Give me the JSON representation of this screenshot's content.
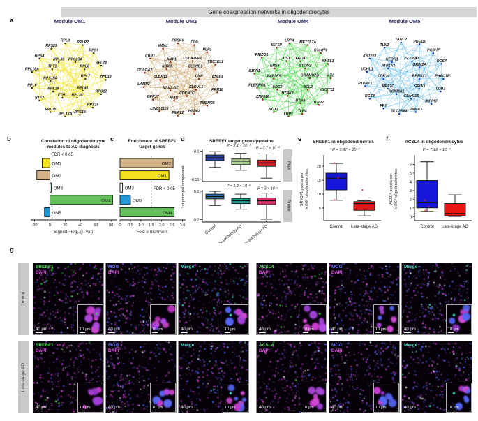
{
  "figure_title": "Gene coexpression networks in oligodendrocytes",
  "panel_labels": {
    "a": "a",
    "b": "b",
    "c": "c",
    "d": "d",
    "e": "e",
    "f": "f",
    "g": "g"
  },
  "panel_a": {
    "modules": [
      {
        "title": "Module OM1",
        "edge_color": "#efdf05",
        "node_color": "#2a2a2a",
        "genes": [
          [
            "RPL3",
            0.45,
            0.09
          ],
          [
            "RPLP2",
            0.64,
            0.11
          ],
          [
            "RPS25",
            0.3,
            0.15
          ],
          [
            "RPS9",
            0.76,
            0.2
          ],
          [
            "RPS8",
            0.17,
            0.26
          ],
          [
            "RPL30",
            0.38,
            0.3
          ],
          [
            "RPL23A",
            0.56,
            0.3
          ],
          [
            "RPL24",
            0.84,
            0.34
          ],
          [
            "RPL18A",
            0.09,
            0.41
          ],
          [
            "TPT1",
            0.31,
            0.38
          ],
          [
            "RPL8",
            0.66,
            0.38
          ],
          [
            "RPS15A",
            0.29,
            0.51
          ],
          [
            "RPL7",
            0.67,
            0.49
          ],
          [
            "RPL18",
            0.89,
            0.5
          ],
          [
            "RPL6",
            0.09,
            0.59
          ],
          [
            "RPL29",
            0.32,
            0.63
          ],
          [
            "RPL41",
            0.64,
            0.62
          ],
          [
            "RPS12",
            0.84,
            0.66
          ],
          [
            "BTF3",
            0.17,
            0.73
          ],
          [
            "FTH1",
            0.42,
            0.7
          ],
          [
            "RPL38",
            0.58,
            0.7
          ],
          [
            "RPS19",
            0.75,
            0.81
          ],
          [
            "RPL35",
            0.29,
            0.86
          ],
          [
            "RPL13A",
            0.45,
            0.91
          ],
          [
            "RPS18",
            0.61,
            0.89
          ]
        ]
      },
      {
        "title": "Module OM2",
        "edge_color": "#c7a265",
        "node_color": "#8c1f1f",
        "genes": [
          [
            "PCSK6",
            0.46,
            0.09
          ],
          [
            "CD9",
            0.64,
            0.11
          ],
          [
            "VWA1",
            0.3,
            0.15
          ],
          [
            "PLP1",
            0.78,
            0.19
          ],
          [
            "CBR1",
            0.16,
            0.26
          ],
          [
            "LAMP1",
            0.38,
            0.3
          ],
          [
            "CDC42EP1",
            0.62,
            0.29
          ],
          [
            "TBC1D12",
            0.87,
            0.33
          ],
          [
            "GOLGA7",
            0.1,
            0.42
          ],
          [
            "SOX8",
            0.34,
            0.38
          ],
          [
            "CLDND1",
            0.65,
            0.38
          ],
          [
            "CLDN11",
            0.27,
            0.5
          ],
          [
            "CNP",
            0.69,
            0.49
          ],
          [
            "ERMN",
            0.89,
            0.5
          ],
          [
            "LAMP2",
            0.09,
            0.58
          ],
          [
            "SOX2-OT",
            0.38,
            0.62
          ],
          [
            "ELOVL1",
            0.66,
            0.61
          ],
          [
            "PRR18",
            0.89,
            0.64
          ],
          [
            "GPR37",
            0.19,
            0.72
          ],
          [
            "MAG",
            0.42,
            0.73
          ],
          [
            "CDKN1C",
            0.56,
            0.68
          ],
          [
            "TMEM98",
            0.78,
            0.79
          ],
          [
            "LINC01105",
            0.26,
            0.85
          ],
          [
            "PMP22",
            0.46,
            0.9
          ],
          [
            "HSPA2",
            0.64,
            0.88
          ]
        ]
      },
      {
        "title": "Module OM4",
        "edge_color": "#2fd42f",
        "node_color": "#8c1f1f",
        "genes": [
          [
            "LRP4",
            0.46,
            0.09
          ],
          [
            "METTL7A",
            0.66,
            0.11
          ],
          [
            "IGF1R",
            0.32,
            0.14
          ],
          [
            "C3orf70",
            0.8,
            0.2
          ],
          [
            "PIEZO1",
            0.16,
            0.25
          ],
          [
            "UST",
            0.43,
            0.29
          ],
          [
            "FGD4",
            0.58,
            0.29
          ],
          [
            "NHSL1",
            0.88,
            0.32
          ],
          [
            "EPS8",
            0.3,
            0.37
          ],
          [
            "STON2",
            0.63,
            0.37
          ],
          [
            "S1PR1",
            0.08,
            0.43
          ],
          [
            "MAP3K5",
            0.29,
            0.49
          ],
          [
            "GRAMD2B",
            0.68,
            0.48
          ],
          [
            "AXL",
            0.91,
            0.48
          ],
          [
            "PLEKHG1",
            0.11,
            0.59
          ],
          [
            "SDC2",
            0.33,
            0.61
          ],
          [
            "BCL2",
            0.66,
            0.61
          ],
          [
            "CHST11",
            0.87,
            0.64
          ],
          [
            "ZNF516",
            0.17,
            0.72
          ],
          [
            "NTRK2",
            0.44,
            0.68
          ],
          [
            "DTNA",
            0.58,
            0.76
          ],
          [
            "ITPR2",
            0.78,
            0.78
          ],
          [
            "SOX2",
            0.29,
            0.86
          ],
          [
            "LRP1",
            0.45,
            0.91
          ],
          [
            "TLR4",
            0.6,
            0.88
          ]
        ]
      },
      {
        "title": "Module OM5",
        "edge_color": "#62bbe8",
        "node_color": "#1930b0",
        "genes": [
          [
            "TANC2",
            0.46,
            0.08
          ],
          [
            "PDE1B",
            0.66,
            0.1
          ],
          [
            "TLN2",
            0.28,
            0.14
          ],
          [
            "PCDH7",
            0.81,
            0.2
          ],
          [
            "KRT222",
            0.12,
            0.26
          ],
          [
            "NEGR1",
            0.36,
            0.3
          ],
          [
            "SLC8A1",
            0.58,
            0.29
          ],
          [
            "RGS7",
            0.9,
            0.32
          ],
          [
            "UCHL1",
            0.09,
            0.41
          ],
          [
            "ATP1A3",
            0.32,
            0.37
          ],
          [
            "GRIN2A",
            0.66,
            0.36
          ],
          [
            "CDK14",
            0.27,
            0.49
          ],
          [
            "RBFOX1",
            0.66,
            0.49
          ],
          [
            "PHACTR1",
            0.92,
            0.49
          ],
          [
            "PTPRZ1",
            0.07,
            0.57
          ],
          [
            "MEF2C",
            0.32,
            0.6
          ],
          [
            "GRIA3",
            0.66,
            0.6
          ],
          [
            "LDB2",
            0.89,
            0.63
          ],
          [
            "RGS4",
            0.12,
            0.71
          ],
          [
            "KCNMA1",
            0.41,
            0.66
          ],
          [
            "C1orf115",
            0.57,
            0.71
          ],
          [
            "INPP5F",
            0.79,
            0.77
          ],
          [
            "FRY",
            0.27,
            0.82
          ],
          [
            "SLC25A4",
            0.44,
            0.88
          ],
          [
            "PNMA3",
            0.62,
            0.86
          ]
        ]
      }
    ]
  },
  "chart_data": [
    {
      "id": "b",
      "type": "bar",
      "orientation": "horizontal",
      "title_lines": [
        "Correlation of oligodendrocyte",
        "modules to AD diagnosis"
      ],
      "annotation": "FDR < 0.05",
      "threshold": 3,
      "categories": [
        "OM1",
        "OM2",
        "OM3",
        "OM4",
        "OM5"
      ],
      "values": [
        -10,
        -17,
        2,
        82,
        -7
      ],
      "colors": [
        "#f3e11d",
        "#d3b287",
        "#cde9e5",
        "#63c05a",
        "#1f97d4"
      ],
      "xlabel": "Signed −log₁₀(P val)",
      "xticks": [
        "-20",
        "0",
        "20",
        "40",
        "60",
        "80"
      ],
      "xlim": [
        -25,
        88
      ]
    },
    {
      "id": "c",
      "type": "bar",
      "orientation": "horizontal",
      "title_lines": [
        "Enrichment of SREBF1",
        "target genes"
      ],
      "annotation": "FDR < 0.05",
      "threshold": 1.5,
      "categories": [
        "OM2",
        "OM1",
        "OM3",
        "OM5",
        "OM4"
      ],
      "values": [
        2.55,
        2.35,
        0.12,
        0.5,
        2.6
      ],
      "colors": [
        "#d3b287",
        "#f3e11d",
        "#ffffff",
        "#1f97d4",
        "#63c05a"
      ],
      "xlabel": "Fold enrichment",
      "xticks": [
        "0",
        "0.5",
        "1.0",
        "1.5",
        "2.0",
        "2.5",
        "3.0"
      ],
      "xlim": [
        0,
        3.15
      ]
    },
    {
      "id": "d",
      "type": "box",
      "title": "SREBF1 target genes/proteins",
      "ylabel": "1st principal component",
      "groups": [
        "Control",
        "Early-pathology AD",
        "Late-pathology AD"
      ],
      "subplots": [
        {
          "tab": "RNA",
          "yticks": [
            "0.1",
            "-0.15"
          ],
          "ylim": [
            -0.17,
            0.115
          ],
          "p_values": [
            "P = 2.1 × 10⁻³",
            "P = 3.7 × 10⁻⁸"
          ],
          "boxes": [
            {
              "color": "#2b3f94",
              "lo": -0.045,
              "q1": 0.015,
              "med": 0.04,
              "q3": 0.065,
              "hi": 0.095
            },
            {
              "color": "#a9d18e",
              "lo": -0.07,
              "q1": -0.02,
              "med": 0.01,
              "q3": 0.03,
              "hi": 0.08
            },
            {
              "color": "#d02020",
              "lo": -0.14,
              "q1": -0.035,
              "med": -0.005,
              "q3": 0.02,
              "hi": 0.075
            }
          ]
        },
        {
          "tab": "Protein",
          "yticks": [
            "0.1",
            "-0.2"
          ],
          "ylim": [
            -0.225,
            0.115
          ],
          "p_values": [
            "P = 1.2 × 10⁻⁵",
            "P = 3 × 10⁻⁴"
          ],
          "boxes": [
            {
              "color": "#2e75b6",
              "lo": -0.05,
              "q1": 0.02,
              "med": 0.045,
              "q3": 0.07,
              "hi": 0.1
            },
            {
              "color": "#1f9e89",
              "lo": -0.09,
              "q1": -0.03,
              "med": 0,
              "q3": 0.025,
              "hi": 0.07
            },
            {
              "color": "#d6336c",
              "lo": -0.195,
              "q1": -0.04,
              "med": 0,
              "q3": 0.03,
              "hi": 0.08,
              "outliers": [
                -0.215
              ]
            }
          ]
        }
      ]
    },
    {
      "id": "e",
      "type": "box",
      "title": "SREBF1 in oligodendrocytes",
      "p_value": "P = 9.87 × 10⁻⁷",
      "ylabel_lines": [
        "SREBF1 puncta per",
        "MOG⁺ oligodendrocytes"
      ],
      "yticks": [
        5,
        10,
        15,
        20
      ],
      "ylim": [
        1,
        22.5
      ],
      "groups": [
        "Control",
        "Late-stage AD"
      ],
      "boxes": [
        {
          "color": "#1616d8",
          "lo": 7.8,
          "q1": 11.5,
          "med": 15.7,
          "q3": 17.5,
          "hi": 21,
          "points": [
            7.9,
            15.9,
            21.1
          ]
        },
        {
          "color": "#ea1515",
          "lo": 2.2,
          "q1": 4.2,
          "med": 6.6,
          "q3": 7.3,
          "hi": 7.6,
          "points": [
            11.5,
            7.5
          ]
        }
      ]
    },
    {
      "id": "f",
      "type": "box",
      "title": "ACSL4 in oligodendrocytes",
      "p_value": "P = 7.18 × 10⁻⁴",
      "ylabel_lines": [
        "ACSL4 puncta per",
        "MOG⁺ oligodendrocytes"
      ],
      "yticks": [
        0,
        1,
        2,
        3,
        4,
        5,
        6
      ],
      "ylim": [
        -0.3,
        6.6
      ],
      "groups": [
        "Control",
        "Late-stage AD"
      ],
      "boxes": [
        {
          "color": "#1616d8",
          "lo": 0.6,
          "q1": 1.0,
          "med": 1.6,
          "q3": 4.15,
          "hi": 6.3,
          "points": [
            1.9,
            1.15,
            0.7
          ]
        },
        {
          "color": "#ea1515",
          "lo": 0.02,
          "q1": 0.1,
          "med": 0.35,
          "q3": 1.5,
          "hi": 2.5,
          "points": [
            0.3
          ]
        }
      ]
    }
  ],
  "panel_g": {
    "rows": [
      {
        "label": "Control"
      },
      {
        "label": "Late-stage AD"
      }
    ],
    "columns": [
      {
        "marker": "SREBF1",
        "marker_color": "#52e052",
        "counterstain": "DAPI",
        "counterstain_color": "#e44fe4",
        "stain": "srebf1",
        "scale_main": "40 μm",
        "scale_inset": "10 μm"
      },
      {
        "marker": "MOG",
        "marker_color": "#5c6cf2",
        "counterstain": "DAPI",
        "counterstain_color": "#e44fe4",
        "stain": "mog",
        "scale_main": "40 μm",
        "scale_inset": "10 μm"
      },
      {
        "marker": "Merge",
        "marker_color": "#49e0c8",
        "counterstain": null,
        "counterstain_color": null,
        "stain": "merge",
        "scale_main": "40 μm",
        "scale_inset": "10 μm"
      },
      {
        "marker": "ACSL4",
        "marker_color": "#52e052",
        "counterstain": "DAPI",
        "counterstain_color": "#e44fe4",
        "stain": "acsl4",
        "scale_main": "40 μm",
        "scale_inset": "10 μm"
      },
      {
        "marker": "MOG",
        "marker_color": "#5c6cf2",
        "counterstain": "DAPI",
        "counterstain_color": "#e44fe4",
        "stain": "mog",
        "scale_main": "40 μm",
        "scale_inset": "10 μm"
      },
      {
        "marker": "Merge",
        "marker_color": "#49e0c8",
        "counterstain": null,
        "counterstain_color": null,
        "stain": "merge",
        "scale_main": "40 μm",
        "scale_inset": "10 μm"
      }
    ]
  }
}
